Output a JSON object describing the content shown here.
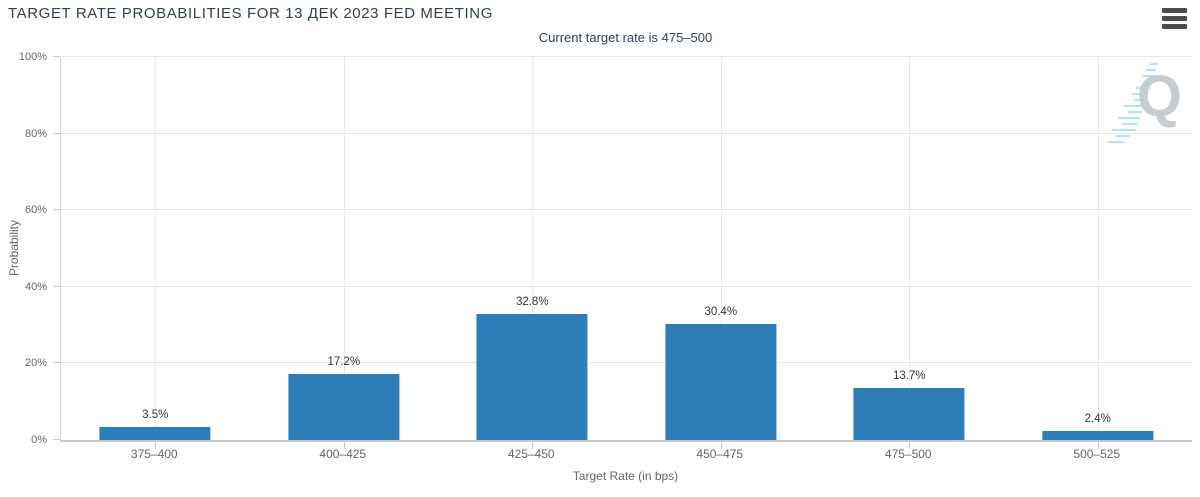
{
  "header": {
    "menu_icon": "hamburger-menu-icon"
  },
  "watermark": {
    "letter": "Q"
  },
  "chart_data": {
    "type": "bar",
    "title": "TARGET RATE PROBABILITIES FOR 13 ДЕК 2023 FED MEETING",
    "subtitle": "Current target rate is 475–500",
    "categories": [
      "375–400",
      "400–425",
      "425–450",
      "450–475",
      "475–500",
      "500–525"
    ],
    "values": [
      3.5,
      17.2,
      32.8,
      30.4,
      13.7,
      2.4
    ],
    "value_labels": [
      "3.5%",
      "17.2%",
      "32.8%",
      "30.4%",
      "13.7%",
      "2.4%"
    ],
    "xlabel": "Target Rate (in bps)",
    "ylabel": "Probability",
    "ylim": [
      0,
      100
    ],
    "yticks_percent": [
      0,
      20,
      40,
      60,
      80,
      100
    ],
    "ytick_labels": [
      "0%",
      "20%",
      "40%",
      "60%",
      "80%",
      "100%"
    ],
    "grid": true,
    "legend_position": "none",
    "bar_color": "#2d7eb8",
    "grid_color": "#e6e6e6",
    "title_color": "#2e4156",
    "axis_label_color": "#666666"
  }
}
